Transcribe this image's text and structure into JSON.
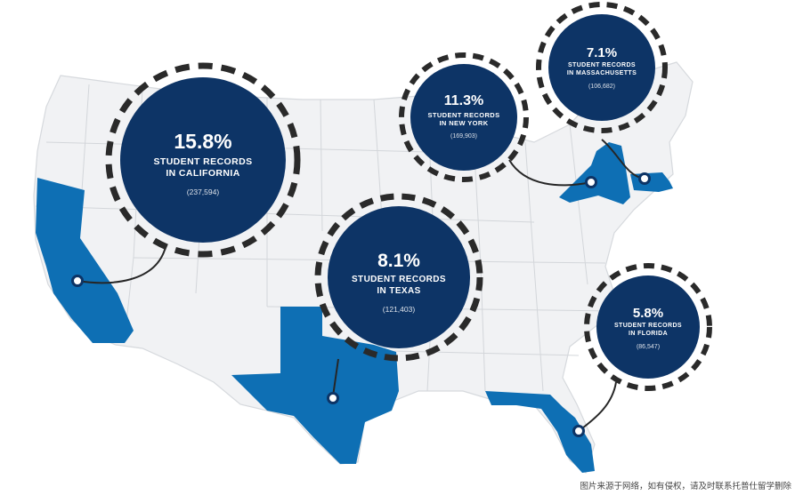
{
  "colors": {
    "navy": "#0d3466",
    "highlight": "#0e6fb4",
    "land": "#f1f2f4",
    "dash": "#2a2a2a"
  },
  "callouts": [
    {
      "pct": "15.8%",
      "line1": "STUDENT RECORDS",
      "line2": "IN CALIFORNIA",
      "count": "(237,594)"
    },
    {
      "pct": "8.1%",
      "line1": "STUDENT RECORDS",
      "line2": "IN TEXAS",
      "count": "(121,403)"
    },
    {
      "pct": "11.3%",
      "line1": "STUDENT RECORDS",
      "line2": "IN NEW YORK",
      "count": "(169,903)"
    },
    {
      "pct": "7.1%",
      "line1": "STUDENT RECORDS",
      "line2": "IN MASSACHUSETTS",
      "count": "(106,682)"
    },
    {
      "pct": "5.8%",
      "line1": "STUDENT RECORDS",
      "line2": "IN FLORIDA",
      "count": "(86,547)"
    }
  ],
  "watermark": "图片来源于网络，如有侵权，请及时联系托普仕留学删除"
}
